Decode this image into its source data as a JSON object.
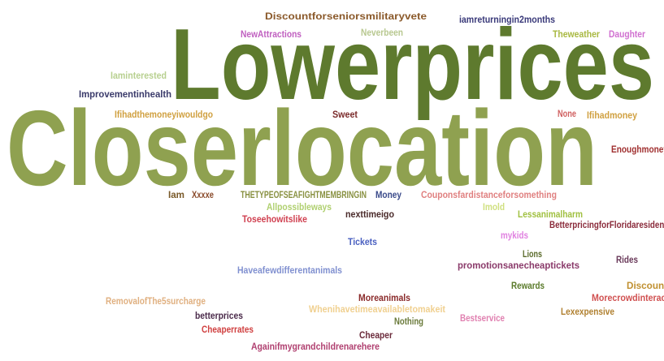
{
  "words": [
    "Discountforseniorsmilitaryvete",
    "iamreturningin2months",
    "NewAttractions",
    "Neverbeen",
    "Theweather",
    "Daughter",
    "Lowerprices",
    "Iaminterested",
    "Improvementinhealth",
    "Ifihadthemoneyiwouldgo",
    "Sweet",
    "None",
    "Ifihadmoney",
    "Closerlocation",
    "Enoughmoney",
    "Iam",
    "Xxxxe",
    "THETYPEOFSEAFIGHTMEMBRINGIN",
    "Money",
    "Couponsfardistanceforsomething",
    "Allpossibleways",
    "Imold",
    "nexttimeigo",
    "Lessanimalharm",
    "Toseehowitslike",
    "BetterpricingforFloridaresidents",
    "mykids",
    "Tickets",
    "Lions",
    "Rides",
    "promotionsanecheaptickets",
    "Haveafewdifferentanimals",
    "Rewards",
    "Discount",
    "RemovalofThe5surcharge",
    "Moreanimals",
    "Morecrowdinteract",
    "Whenihavetimeavailabletomakeit",
    "Lexexpensive",
    "betterprices",
    "Nothing",
    "Bestservice",
    "Cheaperrates",
    "Cheaper",
    "Againifmygrandchildrenarehere"
  ]
}
